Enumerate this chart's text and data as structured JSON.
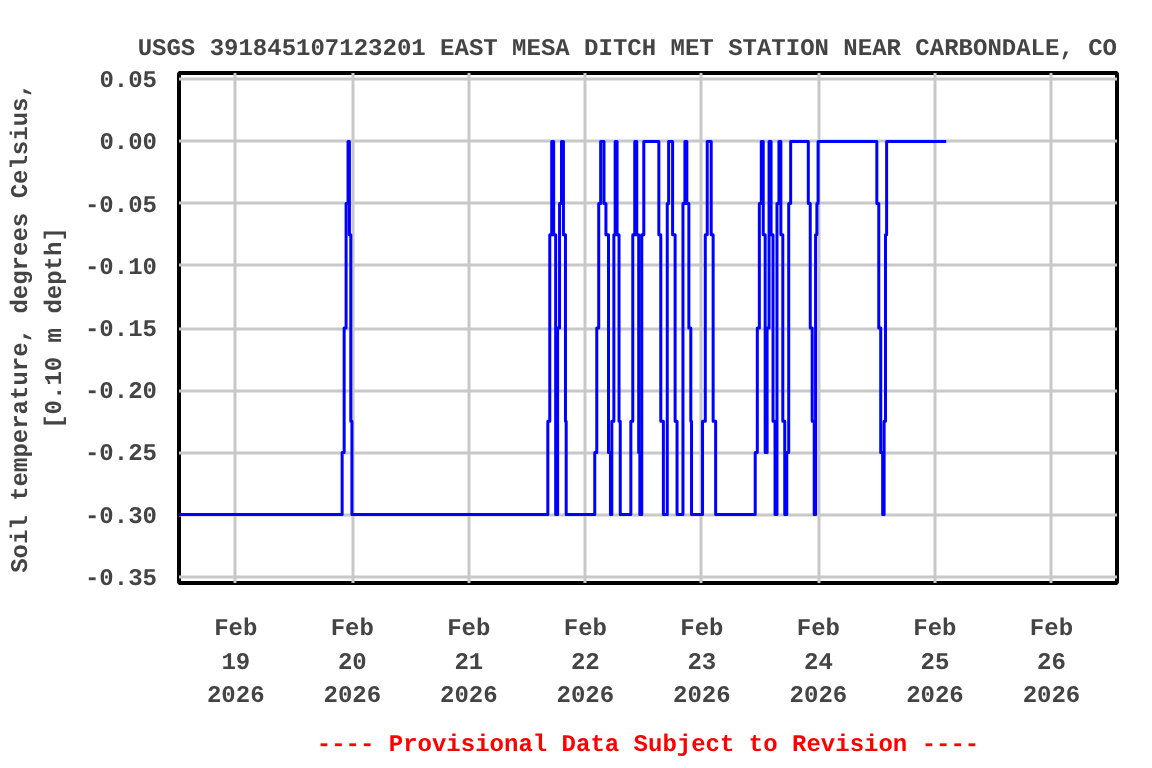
{
  "chart_data": {
    "type": "step",
    "title": "USGS 391845107123201 EAST MESA DITCH MET STATION NEAR CARBONDALE, CO",
    "ylabel": "Soil temperature, degrees Celsius,\n[0.10 m depth]",
    "annotations": [
      "---- Provisional Data Subject to Revision ----"
    ],
    "xlim": [
      "2026-02-18T12:18",
      "2026-02-26T13:30"
    ],
    "xticks": [
      {
        "value": "2026-02-19",
        "label": "Feb\n19\n2026"
      },
      {
        "value": "2026-02-20",
        "label": "Feb\n20\n2026"
      },
      {
        "value": "2026-02-21",
        "label": "Feb\n21\n2026"
      },
      {
        "value": "2026-02-22",
        "label": "Feb\n22\n2026"
      },
      {
        "value": "2026-02-23",
        "label": "Feb\n23\n2026"
      },
      {
        "value": "2026-02-24",
        "label": "Feb\n24\n2026"
      },
      {
        "value": "2026-02-25",
        "label": "Feb\n25\n2026"
      },
      {
        "value": "2026-02-26",
        "label": "Feb\n26\n2026"
      }
    ],
    "ylim": [
      -0.355,
      0.055
    ],
    "yticks": [
      {
        "value": 0.05,
        "label": "0.05"
      },
      {
        "value": 0.0,
        "label": "0.00"
      },
      {
        "value": -0.05,
        "label": "-0.05"
      },
      {
        "value": -0.1,
        "label": "-0.10"
      },
      {
        "value": -0.15,
        "label": "-0.15"
      },
      {
        "value": -0.2,
        "label": "-0.20"
      },
      {
        "value": -0.25,
        "label": "-0.25"
      },
      {
        "value": -0.3,
        "label": "-0.30"
      },
      {
        "value": -0.35,
        "label": "-0.35"
      }
    ],
    "grid": true,
    "line_style": "solid",
    "series": [
      {
        "color": "#0000ff",
        "x": [
          "2026-02-18T12:18",
          "2026-02-19T21:54",
          "2026-02-19T22:19",
          "2026-02-19T22:43",
          "2026-02-19T23:07",
          "2026-02-19T23:24",
          "2026-02-19T23:41",
          "2026-02-19T23:55",
          "2026-02-21T16:16",
          "2026-02-21T16:40",
          "2026-02-21T17:04",
          "2026-02-21T17:28",
          "2026-02-21T17:53",
          "2026-02-21T18:17",
          "2026-02-21T18:41",
          "2026-02-21T19:05",
          "2026-02-21T19:29",
          "2026-02-21T19:54",
          "2026-02-21T20:03",
          "2026-02-22T01:56",
          "2026-02-22T02:21",
          "2026-02-22T02:45",
          "2026-02-22T03:09",
          "2026-02-22T03:50",
          "2026-02-22T04:14",
          "2026-02-22T04:46",
          "2026-02-22T05:10",
          "2026-02-22T05:27",
          "2026-02-22T05:52",
          "2026-02-22T06:08",
          "2026-02-22T06:32",
          "2026-02-22T06:56",
          "2026-02-22T07:11",
          "2026-02-22T09:22",
          "2026-02-22T09:46",
          "2026-02-22T10:10",
          "2026-02-22T10:35",
          "2026-02-22T10:59",
          "2026-02-22T11:13",
          "2026-02-22T11:37",
          "2026-02-22T12:02",
          "2026-02-22T15:08",
          "2026-02-22T15:32",
          "2026-02-22T16:04",
          "2026-02-22T16:52",
          "2026-02-22T17:09",
          "2026-02-22T17:58",
          "2026-02-22T18:29",
          "2026-02-22T18:53",
          "2026-02-22T20:06",
          "2026-02-22T20:30",
          "2026-02-22T20:54",
          "2026-02-22T21:19",
          "2026-02-22T21:43",
          "2026-02-22T21:52",
          "2026-02-23T00:08",
          "2026-02-23T00:42",
          "2026-02-23T01:06",
          "2026-02-23T01:55",
          "2026-02-23T02:19",
          "2026-02-23T02:50",
          "2026-02-23T10:59",
          "2026-02-23T11:25",
          "2026-02-23T11:50",
          "2026-02-23T12:14",
          "2026-02-23T12:38",
          "2026-02-23T13:02",
          "2026-02-23T13:26",
          "2026-02-23T13:50",
          "2026-02-23T14:15",
          "2026-02-23T14:39",
          "2026-02-23T15:04",
          "2026-02-23T15:28",
          "2026-02-23T15:52",
          "2026-02-23T16:16",
          "2026-02-23T16:40",
          "2026-02-23T17:04",
          "2026-02-23T17:29",
          "2026-02-23T17:53",
          "2026-02-23T18:17",
          "2026-02-23T21:55",
          "2026-02-23T22:19",
          "2026-02-23T22:43",
          "2026-02-23T23:08",
          "2026-02-23T23:25",
          "2026-02-23T23:41",
          "2026-02-23T23:56",
          "2026-02-24T12:02",
          "2026-02-24T12:26",
          "2026-02-24T12:50",
          "2026-02-24T13:14",
          "2026-02-24T13:32",
          "2026-02-24T13:49",
          "2026-02-24T14:03",
          "2026-02-25T02:19"
        ],
        "values": [
          -0.3,
          -0.25,
          -0.15,
          -0.05,
          0,
          -0.075,
          -0.225,
          -0.3,
          -0.225,
          -0.075,
          0,
          -0.075,
          -0.3,
          -0.15,
          -0.05,
          0,
          -0.075,
          -0.225,
          -0.3,
          -0.25,
          -0.15,
          -0.05,
          0,
          -0.05,
          -0.075,
          -0.25,
          -0.3,
          -0.225,
          -0.075,
          0,
          -0.075,
          -0.225,
          -0.3,
          -0.225,
          -0.075,
          0,
          -0.075,
          -0.25,
          -0.3,
          -0.075,
          0,
          -0.075,
          -0.225,
          -0.3,
          -0.05,
          0,
          -0.075,
          -0.225,
          -0.3,
          -0.05,
          0,
          -0.05,
          -0.15,
          -0.225,
          -0.3,
          -0.225,
          -0.075,
          0,
          -0.075,
          -0.225,
          -0.3,
          -0.25,
          -0.15,
          -0.05,
          0,
          -0.075,
          -0.25,
          -0.15,
          0,
          -0.075,
          -0.225,
          -0.3,
          -0.05,
          0,
          -0.075,
          -0.225,
          -0.3,
          -0.25,
          -0.05,
          0,
          -0.05,
          -0.15,
          -0.225,
          -0.3,
          -0.075,
          -0.05,
          0,
          -0.05,
          -0.15,
          -0.25,
          -0.3,
          -0.225,
          -0.075,
          0,
          0
        ]
      }
    ]
  }
}
